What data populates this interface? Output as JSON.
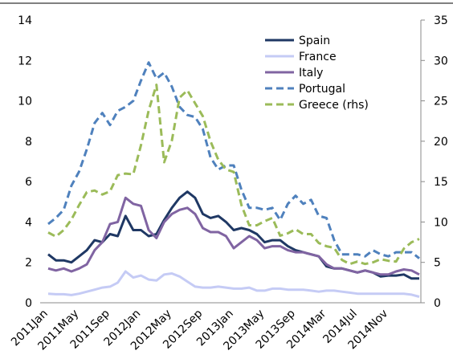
{
  "chart_data": {
    "type": "line",
    "categories": [
      "2011Jan",
      null,
      null,
      null,
      "2011May",
      null,
      null,
      null,
      "2011Sep",
      null,
      null,
      null,
      "2012Jan",
      null,
      null,
      null,
      "2012May",
      null,
      null,
      null,
      "2012Sep",
      null,
      null,
      null,
      "2013Jan",
      null,
      null,
      null,
      "2013May",
      null,
      null,
      null,
      "2013Sep",
      null,
      null,
      null,
      "2014Mar",
      null,
      null,
      null,
      "2014Jul",
      null,
      null,
      null,
      "2014Nov",
      null,
      null,
      null,
      null
    ],
    "ylim": [
      0,
      14
    ],
    "yticks": [
      0,
      2,
      4,
      6,
      8,
      10,
      12,
      14
    ],
    "y2lim": [
      0,
      35
    ],
    "y2ticks": [
      0,
      5,
      10,
      15,
      20,
      25,
      30,
      35
    ],
    "series": [
      {
        "name": "Spain",
        "color": "#1f3864",
        "dash": false,
        "values": [
          2.4,
          2.1,
          2.1,
          2.0,
          2.3,
          2.6,
          3.1,
          3.0,
          3.4,
          3.3,
          4.3,
          3.6,
          3.6,
          3.3,
          3.4,
          4.1,
          4.7,
          5.2,
          5.5,
          5.2,
          4.4,
          4.2,
          4.3,
          4.0,
          3.6,
          3.7,
          3.6,
          3.4,
          3.0,
          3.1,
          3.1,
          2.8,
          2.6,
          2.5,
          2.4,
          2.3,
          1.8,
          1.7,
          1.7,
          1.6,
          1.5,
          1.6,
          1.5,
          1.3,
          1.35,
          1.35,
          1.4,
          1.2,
          1.2
        ]
      },
      {
        "name": "France",
        "color": "#c5cbf5",
        "dash": false,
        "values": [
          0.45,
          0.42,
          0.42,
          0.38,
          0.45,
          0.55,
          0.65,
          0.75,
          0.8,
          1.0,
          1.55,
          1.25,
          1.35,
          1.15,
          1.1,
          1.4,
          1.45,
          1.3,
          1.05,
          0.8,
          0.75,
          0.75,
          0.8,
          0.75,
          0.7,
          0.7,
          0.75,
          0.6,
          0.6,
          0.7,
          0.7,
          0.65,
          0.65,
          0.65,
          0.6,
          0.55,
          0.6,
          0.6,
          0.55,
          0.5,
          0.45,
          0.45,
          0.45,
          0.45,
          0.45,
          0.45,
          0.45,
          0.4,
          0.3
        ]
      },
      {
        "name": "Italy",
        "color": "#8064a2",
        "dash": false,
        "values": [
          1.7,
          1.6,
          1.7,
          1.55,
          1.7,
          1.9,
          2.6,
          3.0,
          3.9,
          4.0,
          5.2,
          4.9,
          4.8,
          3.6,
          3.2,
          4.0,
          4.4,
          4.6,
          4.7,
          4.4,
          3.7,
          3.5,
          3.5,
          3.3,
          2.7,
          3.0,
          3.3,
          3.1,
          2.7,
          2.8,
          2.8,
          2.6,
          2.5,
          2.5,
          2.4,
          2.3,
          1.9,
          1.7,
          1.7,
          1.6,
          1.5,
          1.6,
          1.5,
          1.4,
          1.4,
          1.55,
          1.65,
          1.6,
          1.4
        ]
      },
      {
        "name": "Portugal",
        "color": "#4f81bd",
        "dash": true,
        "values": [
          3.9,
          4.2,
          4.6,
          5.8,
          6.5,
          7.6,
          8.9,
          9.4,
          8.8,
          9.5,
          9.7,
          10.0,
          11.0,
          11.9,
          11.1,
          11.4,
          10.7,
          9.7,
          9.3,
          9.2,
          8.6,
          7.2,
          6.6,
          6.8,
          6.8,
          5.6,
          4.7,
          4.7,
          4.6,
          4.7,
          4.1,
          4.9,
          5.3,
          4.9,
          5.1,
          4.3,
          4.2,
          3.1,
          2.4,
          2.4,
          2.4,
          2.3,
          2.6,
          2.4,
          2.3,
          2.5,
          2.5,
          2.5,
          2.2
        ]
      },
      {
        "name": "Greece (rhs)",
        "color": "#9bbb59",
        "dash": true,
        "axis": "y2",
        "values": [
          8.7,
          8.2,
          9.0,
          10.3,
          12.1,
          13.7,
          13.9,
          13.4,
          13.8,
          15.8,
          16.0,
          15.9,
          19.5,
          23.8,
          27.0,
          17.4,
          20.1,
          25.4,
          26.3,
          24.7,
          23.1,
          20.0,
          17.7,
          16.5,
          16.2,
          12.1,
          9.6,
          9.6,
          10.1,
          10.5,
          8.3,
          8.6,
          9.1,
          8.5,
          8.5,
          7.4,
          7.0,
          6.8,
          5.3,
          4.8,
          5.1,
          4.8,
          5.0,
          5.4,
          5.2,
          5.1,
          6.7,
          7.5,
          7.9
        ]
      }
    ]
  }
}
